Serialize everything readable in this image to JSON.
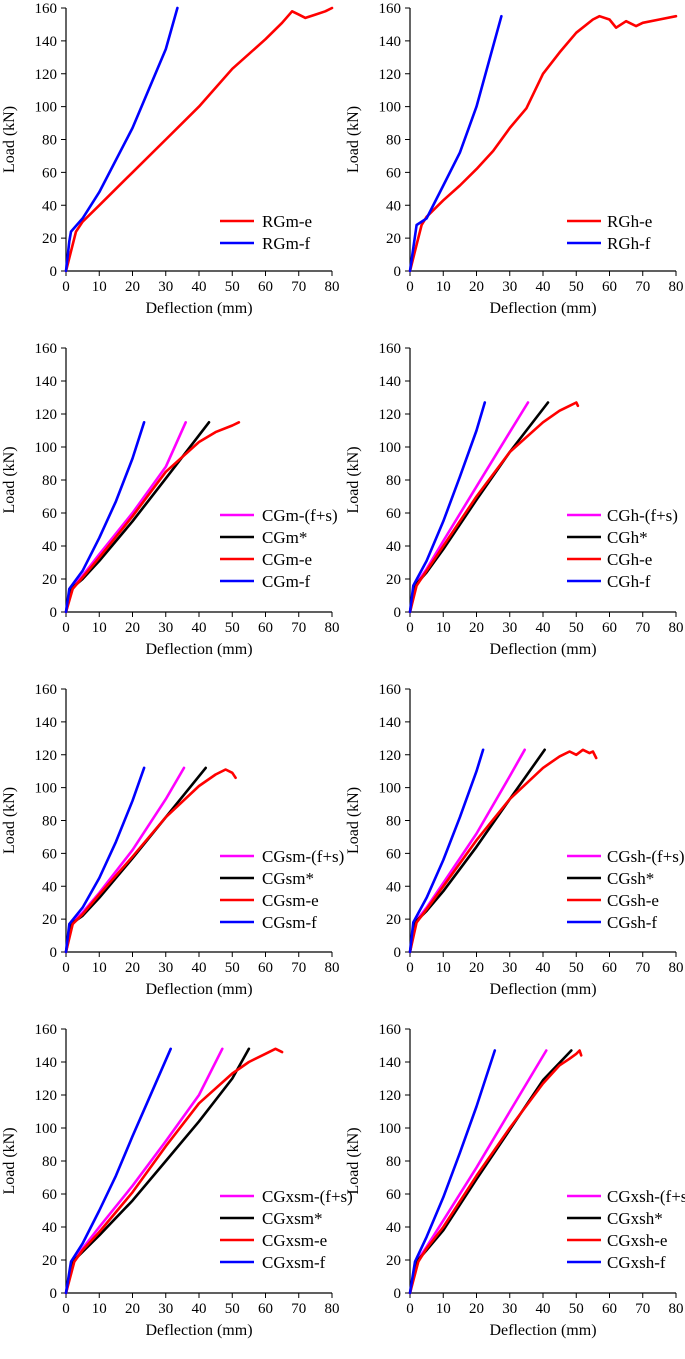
{
  "figure": {
    "xlabel": "Deflection (mm)",
    "ylabel": "Load (kN)",
    "xticks": [
      0,
      10,
      20,
      30,
      40,
      50,
      60,
      70,
      80
    ],
    "yticks": [
      0,
      20,
      40,
      60,
      80,
      100,
      120,
      140,
      160
    ]
  },
  "colors": {
    "e": "#ff0000",
    "f": "#0000ff",
    "fs": "#ff00ff",
    "star": "#000000"
  },
  "chart_data": [
    {
      "type": "line",
      "title": "",
      "xlabel": "Deflection (mm)",
      "ylabel": "Load (kN)",
      "xlim": [
        0,
        80
      ],
      "ylim": [
        0,
        160
      ],
      "grid": false,
      "legend": "bottom-right",
      "series": [
        {
          "name": "RGm-e",
          "color": "#ff0000",
          "x": [
            0,
            1.5,
            3,
            5,
            10,
            15,
            20,
            30,
            40,
            50,
            60,
            65,
            68,
            70,
            72,
            75,
            78,
            80
          ],
          "y": [
            0,
            12,
            24,
            30,
            40,
            50,
            60,
            80,
            100,
            123,
            141,
            151,
            158,
            156,
            154,
            156,
            158,
            160
          ]
        },
        {
          "name": "RGm-f",
          "color": "#0000ff",
          "x": [
            0,
            1,
            1.5,
            5,
            10,
            20,
            30,
            33.5
          ],
          "y": [
            0,
            18,
            24,
            32,
            48,
            87,
            135,
            160
          ]
        }
      ]
    },
    {
      "type": "line",
      "title": "",
      "xlabel": "Deflection (mm)",
      "ylabel": "Load (kN)",
      "xlim": [
        0,
        80
      ],
      "ylim": [
        0,
        160
      ],
      "grid": false,
      "legend": "bottom-right",
      "series": [
        {
          "name": "RGh-e",
          "color": "#ff0000",
          "x": [
            0,
            2,
            3.5,
            5,
            10,
            15,
            20,
            25,
            30,
            35,
            40,
            45,
            50,
            55,
            57,
            60,
            62,
            65,
            68,
            70,
            75,
            80
          ],
          "y": [
            0,
            16,
            28,
            33,
            43,
            52,
            62,
            73,
            87,
            99,
            120,
            133,
            145,
            153,
            155,
            153,
            148,
            152,
            149,
            151,
            153,
            155
          ]
        },
        {
          "name": "RGh-f",
          "color": "#0000ff",
          "x": [
            0,
            1,
            2,
            5,
            10,
            15,
            20,
            27.5
          ],
          "y": [
            0,
            14,
            28,
            32,
            52,
            72,
            100,
            155
          ]
        }
      ]
    },
    {
      "type": "line",
      "title": "",
      "xlabel": "Deflection (mm)",
      "ylabel": "Load (kN)",
      "xlim": [
        0,
        80
      ],
      "ylim": [
        0,
        160
      ],
      "grid": false,
      "legend": "bottom-right",
      "series": [
        {
          "name": "CGm-(f+s)",
          "color": "#ff00ff",
          "x": [
            0,
            1.5,
            5,
            10,
            20,
            30,
            36
          ],
          "y": [
            0,
            14,
            22,
            35,
            60,
            88,
            115
          ]
        },
        {
          "name": "CGm*",
          "color": "#000000",
          "x": [
            0,
            1.5,
            5,
            10,
            20,
            30,
            43
          ],
          "y": [
            0,
            14,
            20,
            31,
            55,
            81,
            115
          ]
        },
        {
          "name": "CGm-e",
          "color": "#ff0000",
          "x": [
            0,
            2,
            5,
            10,
            20,
            30,
            40,
            45,
            50,
            52
          ],
          "y": [
            0,
            14,
            21,
            33,
            58,
            85,
            103,
            109,
            113,
            115
          ]
        },
        {
          "name": "CGm-f",
          "color": "#0000ff",
          "x": [
            0,
            1,
            5,
            10,
            15,
            20,
            23.5
          ],
          "y": [
            0,
            14,
            25,
            45,
            67,
            93,
            115
          ]
        }
      ]
    },
    {
      "type": "line",
      "title": "",
      "xlabel": "Deflection (mm)",
      "ylabel": "Load (kN)",
      "xlim": [
        0,
        80
      ],
      "ylim": [
        0,
        160
      ],
      "grid": false,
      "legend": "bottom-right",
      "series": [
        {
          "name": "CGh-(f+s)",
          "color": "#ff00ff",
          "x": [
            0,
            1.5,
            5,
            10,
            20,
            30,
            35.5
          ],
          "y": [
            0,
            16,
            26,
            43,
            76,
            109,
            127
          ]
        },
        {
          "name": "CGh*",
          "color": "#000000",
          "x": [
            0,
            1.5,
            5,
            10,
            20,
            30,
            41.5
          ],
          "y": [
            0,
            16,
            24,
            38,
            68,
            97,
            127
          ]
        },
        {
          "name": "CGh-e",
          "color": "#ff0000",
          "x": [
            0,
            2,
            5,
            10,
            20,
            30,
            40,
            45,
            48,
            50,
            50.5
          ],
          "y": [
            0,
            16,
            25,
            40,
            70,
            97,
            115,
            122,
            125,
            127,
            125
          ]
        },
        {
          "name": "CGh-f",
          "color": "#0000ff",
          "x": [
            0,
            1,
            5,
            10,
            15,
            20,
            22.5
          ],
          "y": [
            0,
            16,
            31,
            55,
            82,
            110,
            127
          ]
        }
      ]
    },
    {
      "type": "line",
      "title": "",
      "xlabel": "Deflection (mm)",
      "ylabel": "Load (kN)",
      "xlim": [
        0,
        80
      ],
      "ylim": [
        0,
        160
      ],
      "grid": false,
      "legend": "bottom-right",
      "series": [
        {
          "name": "CGsm-(f+s)",
          "color": "#ff00ff",
          "x": [
            0,
            1.5,
            5,
            10,
            20,
            30,
            35.5
          ],
          "y": [
            0,
            17,
            24,
            36,
            62,
            93,
            112
          ]
        },
        {
          "name": "CGsm*",
          "color": "#000000",
          "x": [
            0,
            1.5,
            5,
            10,
            20,
            30,
            42
          ],
          "y": [
            0,
            17,
            22,
            33,
            57,
            82,
            112
          ]
        },
        {
          "name": "CGsm-e",
          "color": "#ff0000",
          "x": [
            0,
            2,
            5,
            10,
            20,
            30,
            40,
            45,
            48,
            50,
            51
          ],
          "y": [
            0,
            17,
            23,
            35,
            58,
            82,
            101,
            108,
            111,
            109,
            106
          ]
        },
        {
          "name": "CGsm-f",
          "color": "#0000ff",
          "x": [
            0,
            1,
            5,
            10,
            15,
            20,
            23.5
          ],
          "y": [
            0,
            17,
            27,
            45,
            67,
            92,
            112
          ]
        }
      ]
    },
    {
      "type": "line",
      "title": "",
      "xlabel": "Deflection (mm)",
      "ylabel": "Load (kN)",
      "xlim": [
        0,
        80
      ],
      "ylim": [
        0,
        160
      ],
      "grid": false,
      "legend": "bottom-right",
      "series": [
        {
          "name": "CGsh-(f+s)",
          "color": "#ff00ff",
          "x": [
            0,
            1.5,
            5,
            10,
            20,
            30,
            34.5
          ],
          "y": [
            0,
            18,
            27,
            42,
            72,
            107,
            123
          ]
        },
        {
          "name": "CGsh*",
          "color": "#000000",
          "x": [
            0,
            1.5,
            5,
            10,
            20,
            30,
            40.5
          ],
          "y": [
            0,
            18,
            25,
            37,
            64,
            93,
            123
          ]
        },
        {
          "name": "CGsh-e",
          "color": "#ff0000",
          "x": [
            0,
            2,
            5,
            10,
            20,
            30,
            40,
            45,
            48,
            50,
            52,
            54,
            55,
            56
          ],
          "y": [
            0,
            18,
            26,
            40,
            68,
            93,
            112,
            119,
            122,
            120,
            123,
            121,
            122,
            118
          ]
        },
        {
          "name": "CGsh-f",
          "color": "#0000ff",
          "x": [
            0,
            1,
            5,
            10,
            15,
            20,
            22
          ],
          "y": [
            0,
            18,
            33,
            56,
            82,
            110,
            123
          ]
        }
      ]
    },
    {
      "type": "line",
      "title": "",
      "xlabel": "Deflection (mm)",
      "ylabel": "Load (kN)",
      "xlim": [
        0,
        80
      ],
      "ylim": [
        0,
        160
      ],
      "grid": false,
      "legend": "bottom-right",
      "series": [
        {
          "name": "CGxsm-(f+s)",
          "color": "#ff00ff",
          "x": [
            0,
            2,
            5,
            10,
            20,
            30,
            40,
            47
          ],
          "y": [
            0,
            19,
            27,
            40,
            65,
            92,
            120,
            148
          ]
        },
        {
          "name": "CGxsm*",
          "color": "#000000",
          "x": [
            0,
            2,
            5,
            10,
            20,
            30,
            40,
            50,
            55
          ],
          "y": [
            0,
            19,
            25,
            35,
            56,
            80,
            104,
            130,
            148
          ]
        },
        {
          "name": "CGxsm-e",
          "color": "#ff0000",
          "x": [
            0,
            2.5,
            5,
            10,
            20,
            30,
            40,
            50,
            55,
            60,
            63,
            65
          ],
          "y": [
            0,
            19,
            26,
            37,
            61,
            89,
            115,
            133,
            140,
            145,
            148,
            146
          ]
        },
        {
          "name": "CGxsm-f",
          "color": "#0000ff",
          "x": [
            0,
            1.5,
            5,
            10,
            15,
            20,
            25,
            31.5
          ],
          "y": [
            0,
            19,
            30,
            50,
            71,
            95,
            118,
            148
          ]
        }
      ]
    },
    {
      "type": "line",
      "title": "",
      "xlabel": "Deflection (mm)",
      "ylabel": "Load (kN)",
      "xlim": [
        0,
        80
      ],
      "ylim": [
        0,
        147
      ],
      "grid": false,
      "legend": "bottom-right",
      "series": [
        {
          "name": "CGxsh-(f+s)",
          "color": "#ff00ff",
          "x": [
            0,
            2,
            5,
            10,
            20,
            30,
            41
          ],
          "y": [
            0,
            19,
            28,
            44,
            76,
            110,
            147
          ]
        },
        {
          "name": "CGxsh*",
          "color": "#000000",
          "x": [
            0,
            2,
            5,
            10,
            20,
            30,
            40,
            48.5
          ],
          "y": [
            0,
            19,
            26,
            38,
            69,
            99,
            129,
            147
          ]
        },
        {
          "name": "CGxsh-e",
          "color": "#ff0000",
          "x": [
            0,
            2.5,
            5,
            10,
            20,
            30,
            40,
            45,
            48,
            50,
            51,
            51.5
          ],
          "y": [
            0,
            19,
            27,
            40,
            71,
            100,
            127,
            138,
            142,
            145,
            147,
            144
          ]
        },
        {
          "name": "CGxsh-f",
          "color": "#0000ff",
          "x": [
            0,
            1.5,
            5,
            10,
            15,
            20,
            25.5
          ],
          "y": [
            0,
            19,
            34,
            58,
            85,
            113,
            147
          ]
        }
      ]
    }
  ]
}
